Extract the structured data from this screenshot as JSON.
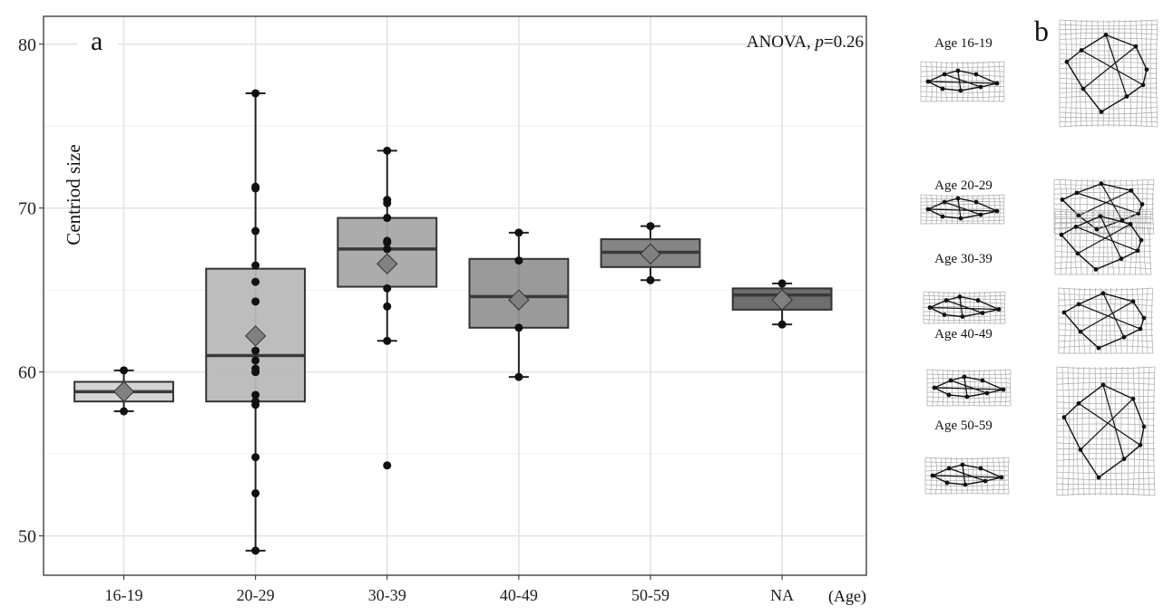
{
  "chart_data": {
    "type": "box",
    "panel_label": "a",
    "annotation": {
      "prefix": "ANOVA, ",
      "p_symbol": "p",
      "suffix": "=0.26"
    },
    "ylabel": "Centriod size",
    "xlabel": "(Age)",
    "ylim": [
      47.6,
      81.7
    ],
    "yticks": [
      50,
      60,
      70,
      80
    ],
    "grid": true,
    "categories": [
      "16-19",
      "20-29",
      "30-39",
      "40-49",
      "50-59",
      "NA"
    ],
    "groups": [
      {
        "name": "16-19",
        "q1": 58.2,
        "median": 58.8,
        "q3": 59.4,
        "whisker_low": 57.6,
        "whisker_high": 60.1,
        "mean": 58.8,
        "fill": "#d2d2d2",
        "points": [
          60.1,
          57.6
        ]
      },
      {
        "name": "20-29",
        "q1": 58.2,
        "median": 61.0,
        "q3": 66.3,
        "whisker_low": 49.1,
        "whisker_high": 77.0,
        "mean": 62.2,
        "fill": "#b9b9b9",
        "points": [
          77.0,
          71.3,
          71.2,
          68.6,
          66.5,
          65.5,
          64.3,
          61.3,
          60.7,
          60.2,
          60.0,
          58.6,
          58.2,
          58.0,
          54.8,
          52.6,
          49.1
        ]
      },
      {
        "name": "30-39",
        "q1": 65.2,
        "median": 67.5,
        "q3": 69.4,
        "whisker_low": 61.9,
        "whisker_high": 73.5,
        "mean": 66.6,
        "fill": "#a8a8a8",
        "points": [
          73.5,
          70.5,
          70.3,
          69.4,
          68.0,
          67.9,
          67.5,
          65.1,
          64.0,
          61.9,
          54.3
        ]
      },
      {
        "name": "40-49",
        "q1": 62.7,
        "median": 64.6,
        "q3": 66.9,
        "whisker_low": 59.7,
        "whisker_high": 68.5,
        "mean": 64.4,
        "fill": "#959595",
        "points": [
          68.5,
          66.8,
          62.7,
          59.7
        ]
      },
      {
        "name": "50-59",
        "q1": 66.4,
        "median": 67.3,
        "q3": 68.1,
        "whisker_low": 65.6,
        "whisker_high": 68.9,
        "mean": 67.2,
        "fill": "#808080",
        "points": [
          68.9,
          65.6
        ]
      },
      {
        "name": "NA",
        "q1": 63.8,
        "median": 64.7,
        "q3": 65.1,
        "whisker_low": 62.9,
        "whisker_high": 65.4,
        "mean": 64.4,
        "fill": "#666666",
        "points": [
          65.4,
          62.9
        ]
      }
    ],
    "mean_marker_color": "#808080"
  },
  "panel_b": {
    "panel_label": "b",
    "rows": [
      {
        "label": "Age 16-19"
      },
      {
        "label": "Age 20-29"
      },
      {
        "label": "Age 30-39"
      },
      {
        "label": "Age 40-49"
      },
      {
        "label": "Age 50-59"
      }
    ]
  }
}
